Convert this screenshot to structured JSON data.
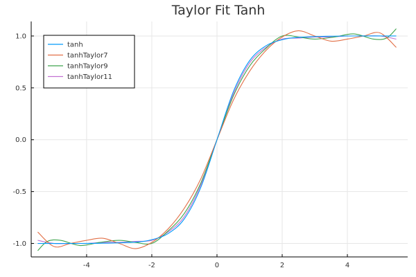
{
  "chart_data": {
    "type": "line",
    "title": "Taylor Fit Tanh",
    "xlabel": "",
    "ylabel": "",
    "xlim": [
      -5.7,
      5.85
    ],
    "ylim": [
      -1.13,
      1.14
    ],
    "xticks": [
      -4,
      -2,
      0,
      2,
      4
    ],
    "yticks": [
      -1.0,
      -0.5,
      0.0,
      0.5,
      1.0
    ],
    "xtick_labels": [
      "-4",
      "-2",
      "0",
      "2",
      "4"
    ],
    "ytick_labels": [
      "-1.0",
      "-0.5",
      "0.0",
      "0.5",
      "1.0"
    ],
    "grid": true,
    "legend_position": "top-left",
    "x_range": [
      -5.5,
      5.5
    ],
    "series": [
      {
        "name": "tanh",
        "color": "#009af9",
        "x": [
          -5.5,
          -4.5,
          -3.5,
          -2.5,
          -2.0,
          -1.5,
          -1.0,
          -0.5,
          0.0,
          0.5,
          1.0,
          1.5,
          2.0,
          2.5,
          3.5,
          4.5,
          5.5
        ],
        "y": [
          -1.0,
          -1.0,
          -0.998,
          -0.987,
          -0.964,
          -0.905,
          -0.762,
          -0.462,
          0.0,
          0.462,
          0.762,
          0.905,
          0.964,
          0.987,
          0.998,
          1.0,
          1.0
        ]
      },
      {
        "name": "tanhTaylor7",
        "color": "#e26f46",
        "x": [
          -5.5,
          -5.0,
          -4.5,
          -4.0,
          -3.5,
          -3.0,
          -2.5,
          -2.0,
          -1.5,
          -1.0,
          -0.5,
          0.0,
          0.5,
          1.0,
          1.5,
          2.0,
          2.5,
          3.0,
          3.5,
          4.0,
          4.5,
          5.0,
          5.5
        ],
        "y": [
          -0.89,
          -1.03,
          -1.0,
          -0.97,
          -0.95,
          -1.0,
          -1.05,
          -0.99,
          -0.86,
          -0.66,
          -0.38,
          0.0,
          0.38,
          0.66,
          0.86,
          0.99,
          1.05,
          1.0,
          0.95,
          0.97,
          1.0,
          1.03,
          0.89
        ]
      },
      {
        "name": "tanhTaylor9",
        "color": "#3da44d",
        "x": [
          -5.5,
          -5.2,
          -4.8,
          -4.2,
          -3.6,
          -3.0,
          -2.5,
          -2.0,
          -1.5,
          -1.0,
          -0.5,
          0.0,
          0.5,
          1.0,
          1.5,
          2.0,
          2.5,
          3.0,
          3.6,
          4.2,
          4.8,
          5.2,
          5.5
        ],
        "y": [
          -1.07,
          -0.98,
          -0.97,
          -1.02,
          -0.99,
          -0.97,
          -0.99,
          -1.0,
          -0.88,
          -0.71,
          -0.42,
          0.0,
          0.42,
          0.71,
          0.88,
          1.0,
          0.99,
          0.97,
          0.99,
          1.02,
          0.97,
          0.98,
          1.07
        ]
      },
      {
        "name": "tanhTaylor11",
        "color": "#c271d2",
        "x": [
          -5.5,
          -5.0,
          -4.5,
          -4.0,
          -3.5,
          -3.0,
          -2.5,
          -2.0,
          -1.5,
          -1.0,
          -0.5,
          0.0,
          0.5,
          1.0,
          1.5,
          2.0,
          2.5,
          3.0,
          3.5,
          4.0,
          4.5,
          5.0,
          5.5
        ],
        "y": [
          -0.97,
          -1.0,
          -1.0,
          -1.0,
          -0.99,
          -0.99,
          -0.98,
          -0.97,
          -0.89,
          -0.74,
          -0.44,
          0.0,
          0.44,
          0.74,
          0.89,
          0.97,
          0.98,
          0.99,
          0.99,
          1.0,
          1.0,
          1.0,
          0.97
        ]
      }
    ]
  }
}
